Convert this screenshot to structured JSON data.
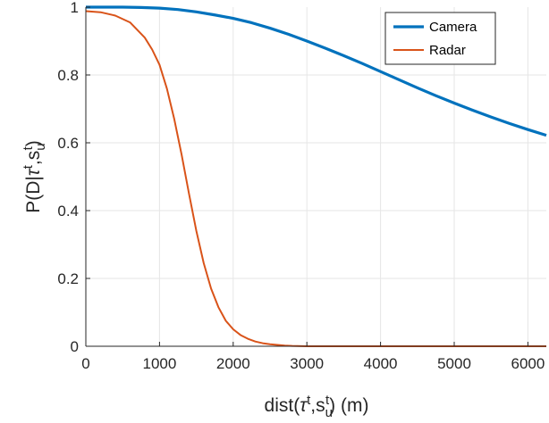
{
  "chart_data": {
    "type": "line",
    "xlim": [
      0,
      6250
    ],
    "ylim": [
      0,
      1
    ],
    "xticks": [
      0,
      1000,
      2000,
      3000,
      4000,
      5000,
      6000
    ],
    "xtick_labels": [
      "0",
      "1000",
      "2000",
      "3000",
      "4000",
      "5000",
      "6000"
    ],
    "yticks": [
      0,
      0.2,
      0.4,
      0.6,
      0.8,
      1
    ],
    "ytick_labels": [
      "0",
      "0.2",
      "0.4",
      "0.6",
      "0.8",
      "1"
    ],
    "grid": true,
    "legend_position": "top-right",
    "xlabel": {
      "pre": "dist(",
      "tau": "τ",
      "sup1": "t",
      "mid": ",s",
      "sub": "u",
      "sup2": "t",
      "post": ") (m)"
    },
    "ylabel": {
      "pre": "P(D|",
      "tau": "τ",
      "sup1": "t",
      "mid": ",s",
      "sub": "u",
      "sup2": "t",
      "post": ")"
    },
    "series": [
      {
        "name": "Camera",
        "color": "#0072BD",
        "x": [
          0,
          250,
          500,
          750,
          1000,
          1250,
          1500,
          1750,
          2000,
          2250,
          2500,
          2750,
          3000,
          3250,
          3500,
          3750,
          4000,
          4250,
          4500,
          4750,
          5000,
          5250,
          5500,
          5750,
          6000,
          6250
        ],
        "y": [
          1.0,
          1.0,
          1.0,
          0.999,
          0.997,
          0.993,
          0.986,
          0.977,
          0.967,
          0.954,
          0.938,
          0.92,
          0.9,
          0.879,
          0.857,
          0.834,
          0.81,
          0.786,
          0.762,
          0.739,
          0.717,
          0.696,
          0.676,
          0.657,
          0.639,
          0.622
        ]
      },
      {
        "name": "Radar",
        "color": "#D95319",
        "x": [
          0,
          200,
          400,
          600,
          800,
          900,
          1000,
          1100,
          1200,
          1300,
          1400,
          1500,
          1600,
          1700,
          1800,
          1900,
          2000,
          2100,
          2200,
          2300,
          2400,
          2500,
          2600,
          2700,
          2800,
          3000,
          3200,
          3500,
          4000,
          5000,
          6250
        ],
        "y": [
          0.988,
          0.985,
          0.975,
          0.955,
          0.91,
          0.875,
          0.83,
          0.76,
          0.67,
          0.565,
          0.45,
          0.34,
          0.245,
          0.17,
          0.115,
          0.075,
          0.05,
          0.033,
          0.022,
          0.014,
          0.009,
          0.006,
          0.004,
          0.002,
          0.001,
          0.0,
          0.0,
          0.0,
          0.0,
          0.0,
          0.0
        ]
      }
    ]
  }
}
